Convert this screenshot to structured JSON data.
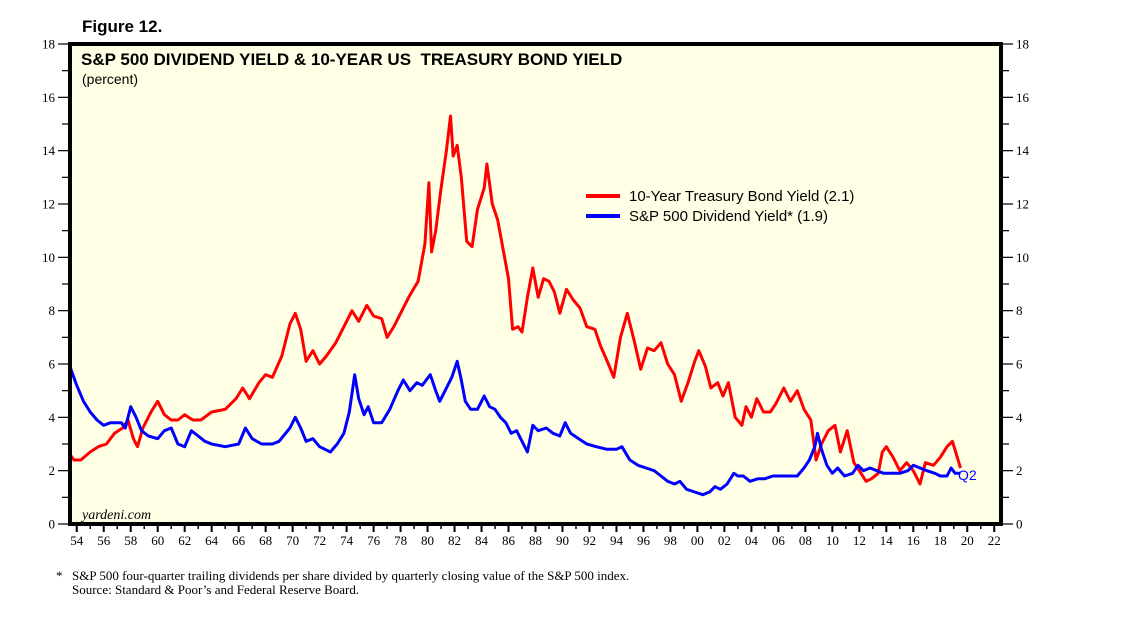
{
  "figure_label": "Figure 12.",
  "watermark": "yardeni.com",
  "end_marker": "Q2",
  "footnote": {
    "asterisk": "*",
    "line1": "S&P 500 four-quarter trailing dividends per share divided by quarterly closing value of the S&P 500 index.",
    "line2": "Source: Standard & Poor’s and Federal Reserve Board."
  },
  "colors": {
    "plot_background": "#ffffe6",
    "treasury": "#ff0000",
    "dividend": "#0000ff",
    "frame": "#000000"
  },
  "chart_data": {
    "type": "line",
    "title": "S&P 500 DIVIDEND YIELD & 10-YEAR US  TREASURY BOND YIELD",
    "subtitle": "(percent)",
    "xlabel": "",
    "ylabel": "",
    "xlim": [
      1953.5,
      2022.5
    ],
    "ylim": [
      0,
      18
    ],
    "y_ticks": [
      0,
      2,
      4,
      6,
      8,
      10,
      12,
      14,
      16,
      18
    ],
    "y_tick_labels": [
      "0",
      "2",
      "4",
      "6",
      "8",
      "10",
      "12",
      "14",
      "16",
      "18"
    ],
    "x_ticks": [
      1954,
      1956,
      1958,
      1960,
      1962,
      1964,
      1966,
      1968,
      1970,
      1972,
      1974,
      1976,
      1978,
      1980,
      1982,
      1984,
      1986,
      1988,
      1990,
      1992,
      1994,
      1996,
      1998,
      2000,
      2002,
      2004,
      2006,
      2008,
      2010,
      2012,
      2014,
      2016,
      2018,
      2020,
      2022
    ],
    "x_tick_labels": [
      "54",
      "56",
      "58",
      "60",
      "62",
      "64",
      "66",
      "68",
      "70",
      "72",
      "74",
      "76",
      "78",
      "80",
      "82",
      "84",
      "86",
      "88",
      "90",
      "92",
      "94",
      "96",
      "98",
      "00",
      "02",
      "04",
      "06",
      "08",
      "10",
      "12",
      "14",
      "16",
      "18",
      "20",
      "22"
    ],
    "grid": false,
    "legend_position": "top-right",
    "series": [
      {
        "name": "10-Year Treasury Bond Yield (2.1)",
        "color": "#ff0000",
        "points": [
          [
            1953.5,
            2.6
          ],
          [
            1953.8,
            2.4
          ],
          [
            1954.3,
            2.4
          ],
          [
            1955.0,
            2.7
          ],
          [
            1955.6,
            2.9
          ],
          [
            1956.2,
            3.0
          ],
          [
            1956.8,
            3.4
          ],
          [
            1957.4,
            3.6
          ],
          [
            1957.8,
            3.9
          ],
          [
            1958.2,
            3.2
          ],
          [
            1958.5,
            2.9
          ],
          [
            1958.9,
            3.6
          ],
          [
            1959.5,
            4.2
          ],
          [
            1960.0,
            4.6
          ],
          [
            1960.5,
            4.1
          ],
          [
            1961.0,
            3.9
          ],
          [
            1961.5,
            3.9
          ],
          [
            1962.0,
            4.1
          ],
          [
            1962.6,
            3.9
          ],
          [
            1963.2,
            3.9
          ],
          [
            1964.0,
            4.2
          ],
          [
            1965.0,
            4.3
          ],
          [
            1965.8,
            4.7
          ],
          [
            1966.3,
            5.1
          ],
          [
            1966.8,
            4.7
          ],
          [
            1967.5,
            5.3
          ],
          [
            1968.0,
            5.6
          ],
          [
            1968.5,
            5.5
          ],
          [
            1969.2,
            6.3
          ],
          [
            1969.8,
            7.5
          ],
          [
            1970.2,
            7.9
          ],
          [
            1970.6,
            7.3
          ],
          [
            1971.0,
            6.1
          ],
          [
            1971.5,
            6.5
          ],
          [
            1972.0,
            6.0
          ],
          [
            1972.5,
            6.3
          ],
          [
            1973.2,
            6.8
          ],
          [
            1973.8,
            7.4
          ],
          [
            1974.4,
            8.0
          ],
          [
            1974.9,
            7.6
          ],
          [
            1975.5,
            8.2
          ],
          [
            1976.0,
            7.8
          ],
          [
            1976.6,
            7.7
          ],
          [
            1977.0,
            7.0
          ],
          [
            1977.5,
            7.4
          ],
          [
            1978.0,
            7.9
          ],
          [
            1978.6,
            8.5
          ],
          [
            1979.3,
            9.1
          ],
          [
            1979.8,
            10.5
          ],
          [
            1980.1,
            12.8
          ],
          [
            1980.3,
            10.2
          ],
          [
            1980.6,
            11.0
          ],
          [
            1981.0,
            12.6
          ],
          [
            1981.4,
            14.0
          ],
          [
            1981.7,
            15.3
          ],
          [
            1981.9,
            13.8
          ],
          [
            1982.2,
            14.2
          ],
          [
            1982.5,
            13.0
          ],
          [
            1982.9,
            10.6
          ],
          [
            1983.3,
            10.4
          ],
          [
            1983.7,
            11.8
          ],
          [
            1984.2,
            12.6
          ],
          [
            1984.4,
            13.5
          ],
          [
            1984.8,
            12.0
          ],
          [
            1985.2,
            11.4
          ],
          [
            1985.6,
            10.3
          ],
          [
            1986.0,
            9.2
          ],
          [
            1986.3,
            7.3
          ],
          [
            1986.7,
            7.4
          ],
          [
            1987.0,
            7.2
          ],
          [
            1987.4,
            8.5
          ],
          [
            1987.8,
            9.6
          ],
          [
            1988.2,
            8.5
          ],
          [
            1988.6,
            9.2
          ],
          [
            1989.0,
            9.1
          ],
          [
            1989.4,
            8.7
          ],
          [
            1989.8,
            7.9
          ],
          [
            1990.3,
            8.8
          ],
          [
            1990.8,
            8.4
          ],
          [
            1991.3,
            8.1
          ],
          [
            1991.8,
            7.4
          ],
          [
            1992.4,
            7.3
          ],
          [
            1992.8,
            6.7
          ],
          [
            1993.4,
            6.0
          ],
          [
            1993.8,
            5.5
          ],
          [
            1994.3,
            7.0
          ],
          [
            1994.8,
            7.9
          ],
          [
            1995.3,
            6.9
          ],
          [
            1995.8,
            5.8
          ],
          [
            1996.3,
            6.6
          ],
          [
            1996.8,
            6.5
          ],
          [
            1997.3,
            6.8
          ],
          [
            1997.8,
            6.0
          ],
          [
            1998.3,
            5.6
          ],
          [
            1998.8,
            4.6
          ],
          [
            1999.3,
            5.3
          ],
          [
            1999.8,
            6.1
          ],
          [
            2000.1,
            6.5
          ],
          [
            2000.6,
            5.9
          ],
          [
            2001.0,
            5.1
          ],
          [
            2001.5,
            5.3
          ],
          [
            2001.9,
            4.8
          ],
          [
            2002.3,
            5.3
          ],
          [
            2002.8,
            4.0
          ],
          [
            2003.3,
            3.7
          ],
          [
            2003.6,
            4.4
          ],
          [
            2004.0,
            4.0
          ],
          [
            2004.4,
            4.7
          ],
          [
            2004.9,
            4.2
          ],
          [
            2005.4,
            4.2
          ],
          [
            2005.8,
            4.5
          ],
          [
            2006.4,
            5.1
          ],
          [
            2006.9,
            4.6
          ],
          [
            2007.4,
            5.0
          ],
          [
            2007.9,
            4.3
          ],
          [
            2008.4,
            3.9
          ],
          [
            2008.8,
            2.4
          ],
          [
            2009.2,
            3.0
          ],
          [
            2009.7,
            3.5
          ],
          [
            2010.2,
            3.7
          ],
          [
            2010.6,
            2.7
          ],
          [
            2011.1,
            3.5
          ],
          [
            2011.6,
            2.3
          ],
          [
            2012.0,
            2.0
          ],
          [
            2012.5,
            1.6
          ],
          [
            2012.9,
            1.7
          ],
          [
            2013.4,
            1.9
          ],
          [
            2013.7,
            2.7
          ],
          [
            2014.0,
            2.9
          ],
          [
            2014.5,
            2.5
          ],
          [
            2015.0,
            2.0
          ],
          [
            2015.5,
            2.3
          ],
          [
            2016.0,
            2.0
          ],
          [
            2016.5,
            1.5
          ],
          [
            2016.9,
            2.3
          ],
          [
            2017.5,
            2.2
          ],
          [
            2018.0,
            2.5
          ],
          [
            2018.5,
            2.9
          ],
          [
            2018.9,
            3.1
          ],
          [
            2019.2,
            2.6
          ],
          [
            2019.5,
            2.1
          ]
        ]
      },
      {
        "name": "S&P 500 Dividend Yield* (1.9)",
        "color": "#0000ff",
        "points": [
          [
            1953.5,
            5.9
          ],
          [
            1954.0,
            5.2
          ],
          [
            1954.5,
            4.6
          ],
          [
            1955.0,
            4.2
          ],
          [
            1955.5,
            3.9
          ],
          [
            1956.0,
            3.7
          ],
          [
            1956.5,
            3.8
          ],
          [
            1957.0,
            3.8
          ],
          [
            1957.3,
            3.8
          ],
          [
            1957.6,
            3.6
          ],
          [
            1958.0,
            4.4
          ],
          [
            1958.4,
            4.0
          ],
          [
            1958.8,
            3.5
          ],
          [
            1959.3,
            3.3
          ],
          [
            1960.0,
            3.2
          ],
          [
            1960.5,
            3.5
          ],
          [
            1961.0,
            3.6
          ],
          [
            1961.5,
            3.0
          ],
          [
            1962.0,
            2.9
          ],
          [
            1962.5,
            3.5
          ],
          [
            1963.0,
            3.3
          ],
          [
            1963.5,
            3.1
          ],
          [
            1964.0,
            3.0
          ],
          [
            1965.0,
            2.9
          ],
          [
            1966.0,
            3.0
          ],
          [
            1966.5,
            3.6
          ],
          [
            1967.0,
            3.2
          ],
          [
            1967.7,
            3.0
          ],
          [
            1968.5,
            3.0
          ],
          [
            1969.0,
            3.1
          ],
          [
            1969.8,
            3.6
          ],
          [
            1970.2,
            4.0
          ],
          [
            1970.6,
            3.6
          ],
          [
            1971.0,
            3.1
          ],
          [
            1971.5,
            3.2
          ],
          [
            1972.0,
            2.9
          ],
          [
            1972.8,
            2.7
          ],
          [
            1973.3,
            3.0
          ],
          [
            1973.8,
            3.4
          ],
          [
            1974.2,
            4.2
          ],
          [
            1974.6,
            5.6
          ],
          [
            1974.9,
            4.7
          ],
          [
            1975.3,
            4.1
          ],
          [
            1975.6,
            4.4
          ],
          [
            1976.0,
            3.8
          ],
          [
            1976.6,
            3.8
          ],
          [
            1977.2,
            4.3
          ],
          [
            1977.8,
            5.0
          ],
          [
            1978.2,
            5.4
          ],
          [
            1978.7,
            5.0
          ],
          [
            1979.2,
            5.3
          ],
          [
            1979.6,
            5.2
          ],
          [
            1980.2,
            5.6
          ],
          [
            1980.6,
            5.0
          ],
          [
            1980.9,
            4.6
          ],
          [
            1981.3,
            5.0
          ],
          [
            1981.8,
            5.5
          ],
          [
            1982.2,
            6.1
          ],
          [
            1982.5,
            5.4
          ],
          [
            1982.8,
            4.6
          ],
          [
            1983.2,
            4.3
          ],
          [
            1983.7,
            4.3
          ],
          [
            1984.2,
            4.8
          ],
          [
            1984.6,
            4.4
          ],
          [
            1985.0,
            4.3
          ],
          [
            1985.4,
            4.0
          ],
          [
            1985.8,
            3.8
          ],
          [
            1986.2,
            3.4
          ],
          [
            1986.6,
            3.5
          ],
          [
            1987.0,
            3.1
          ],
          [
            1987.4,
            2.7
          ],
          [
            1987.8,
            3.7
          ],
          [
            1988.2,
            3.5
          ],
          [
            1988.8,
            3.6
          ],
          [
            1989.3,
            3.4
          ],
          [
            1989.8,
            3.3
          ],
          [
            1990.2,
            3.8
          ],
          [
            1990.6,
            3.4
          ],
          [
            1991.2,
            3.2
          ],
          [
            1991.8,
            3.0
          ],
          [
            1992.5,
            2.9
          ],
          [
            1993.3,
            2.8
          ],
          [
            1994.0,
            2.8
          ],
          [
            1994.4,
            2.9
          ],
          [
            1995.0,
            2.4
          ],
          [
            1995.6,
            2.2
          ],
          [
            1996.2,
            2.1
          ],
          [
            1996.8,
            2.0
          ],
          [
            1997.3,
            1.8
          ],
          [
            1997.8,
            1.6
          ],
          [
            1998.3,
            1.5
          ],
          [
            1998.7,
            1.6
          ],
          [
            1999.2,
            1.3
          ],
          [
            1999.8,
            1.2
          ],
          [
            2000.4,
            1.1
          ],
          [
            2000.9,
            1.2
          ],
          [
            2001.3,
            1.4
          ],
          [
            2001.7,
            1.3
          ],
          [
            2002.2,
            1.5
          ],
          [
            2002.7,
            1.9
          ],
          [
            2003.0,
            1.8
          ],
          [
            2003.4,
            1.8
          ],
          [
            2003.9,
            1.6
          ],
          [
            2004.5,
            1.7
          ],
          [
            2005.0,
            1.7
          ],
          [
            2005.6,
            1.8
          ],
          [
            2006.2,
            1.8
          ],
          [
            2006.8,
            1.8
          ],
          [
            2007.4,
            1.8
          ],
          [
            2007.9,
            2.1
          ],
          [
            2008.3,
            2.4
          ],
          [
            2008.7,
            2.9
          ],
          [
            2008.9,
            3.4
          ],
          [
            2009.2,
            2.8
          ],
          [
            2009.6,
            2.2
          ],
          [
            2010.0,
            1.9
          ],
          [
            2010.4,
            2.1
          ],
          [
            2010.9,
            1.8
          ],
          [
            2011.5,
            1.9
          ],
          [
            2011.9,
            2.2
          ],
          [
            2012.3,
            2.0
          ],
          [
            2012.8,
            2.1
          ],
          [
            2013.3,
            2.0
          ],
          [
            2013.8,
            1.9
          ],
          [
            2014.4,
            1.9
          ],
          [
            2015.0,
            1.9
          ],
          [
            2015.6,
            2.0
          ],
          [
            2016.0,
            2.2
          ],
          [
            2016.5,
            2.1
          ],
          [
            2017.0,
            2.0
          ],
          [
            2017.6,
            1.9
          ],
          [
            2018.0,
            1.8
          ],
          [
            2018.5,
            1.8
          ],
          [
            2018.8,
            2.1
          ],
          [
            2019.1,
            1.9
          ],
          [
            2019.5,
            1.9
          ]
        ]
      }
    ]
  }
}
